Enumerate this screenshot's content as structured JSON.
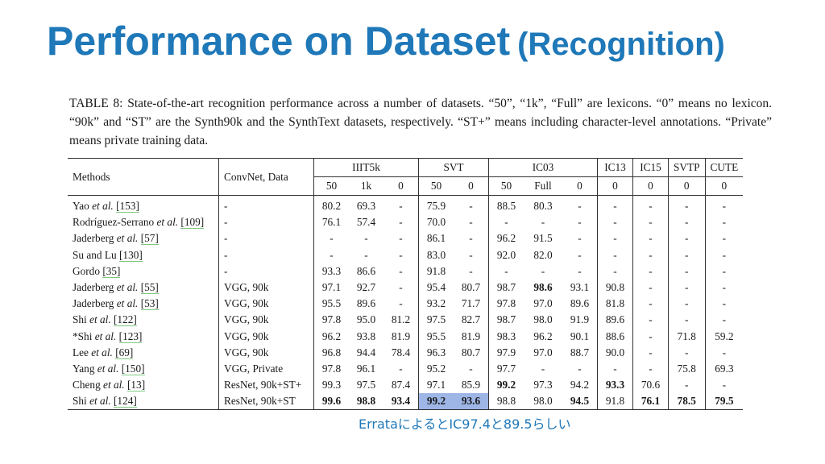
{
  "title": {
    "main": "Performance on Dataset",
    "sub": "(Recognition)"
  },
  "caption": "TABLE 8: State-of-the-art recognition performance across a number of datasets. “50”, “1k”, “Full” are lexicons. “0” means no lexicon. “90k” and “ST” are the Synth90k and the SynthText datasets, respectively. “ST+” means including character-level annotations. “Private” means private training data.",
  "table": {
    "col_methods": "Methods",
    "col_convnet": "ConvNet, Data",
    "groups": [
      {
        "name": "IIIT5k",
        "subs": [
          "50",
          "1k",
          "0"
        ]
      },
      {
        "name": "SVT",
        "subs": [
          "50",
          "0"
        ]
      },
      {
        "name": "IC03",
        "subs": [
          "50",
          "Full",
          "0"
        ]
      },
      {
        "name": "IC13",
        "subs": [
          "0"
        ]
      },
      {
        "name": "IC15",
        "subs": [
          "0"
        ]
      },
      {
        "name": "SVTP",
        "subs": [
          "0"
        ]
      },
      {
        "name": "CUTE",
        "subs": [
          "0"
        ]
      }
    ],
    "rows": [
      {
        "method": "Yao",
        "etal": " et al.",
        "ref": "[153]",
        "convnet": "-",
        "cells": [
          "80.2",
          "69.3",
          "-",
          "75.9",
          "-",
          "88.5",
          "80.3",
          "-",
          "-",
          "-",
          "-",
          "-"
        ]
      },
      {
        "method": "Rodríguez-Serrano",
        "etal": " et al.",
        "ref": "[109]",
        "convnet": "-",
        "cells": [
          "76.1",
          "57.4",
          "-",
          "70.0",
          "-",
          "-",
          "-",
          "-",
          "-",
          "-",
          "-",
          "-"
        ]
      },
      {
        "method": "Jaderberg",
        "etal": " et al.",
        "ref": "[57]",
        "convnet": "-",
        "cells": [
          "-",
          "-",
          "-",
          "86.1",
          "-",
          "96.2",
          "91.5",
          "-",
          "-",
          "-",
          "-",
          "-"
        ]
      },
      {
        "method": "Su and Lu",
        "etal": "",
        "ref": "[130]",
        "convnet": "-",
        "cells": [
          "-",
          "-",
          "-",
          "83.0",
          "-",
          "92.0",
          "82.0",
          "-",
          "-",
          "-",
          "-",
          "-"
        ]
      },
      {
        "method": "Gordo",
        "etal": "",
        "ref": "[35]",
        "convnet": "-",
        "cells": [
          "93.3",
          "86.6",
          "-",
          "91.8",
          "-",
          "-",
          "-",
          "-",
          "-",
          "-",
          "-",
          "-"
        ]
      },
      {
        "method": "Jaderberg",
        "etal": " et al.",
        "ref": "[55]",
        "convnet": "VGG, 90k",
        "cells": [
          "97.1",
          "92.7",
          "-",
          "95.4",
          "80.7",
          "98.7",
          "98.6",
          "93.1",
          "90.8",
          "-",
          "-",
          "-"
        ]
      },
      {
        "method": "Jaderberg",
        "etal": " et al.",
        "ref": "[53]",
        "convnet": "VGG, 90k",
        "cells": [
          "95.5",
          "89.6",
          "-",
          "93.2",
          "71.7",
          "97.8",
          "97.0",
          "89.6",
          "81.8",
          "-",
          "-",
          "-"
        ]
      },
      {
        "method": "Shi",
        "etal": " et al.",
        "ref": "[122]",
        "convnet": "VGG, 90k",
        "cells": [
          "97.8",
          "95.0",
          "81.2",
          "97.5",
          "82.7",
          "98.7",
          "98.0",
          "91.9",
          "89.6",
          "-",
          "-",
          "-"
        ]
      },
      {
        "method": "*Shi",
        "etal": " et al.",
        "ref": "[123]",
        "convnet": "VGG, 90k",
        "cells": [
          "96.2",
          "93.8",
          "81.9",
          "95.5",
          "81.9",
          "98.3",
          "96.2",
          "90.1",
          "88.6",
          "-",
          "71.8",
          "59.2"
        ]
      },
      {
        "method": "Lee",
        "etal": " et al.",
        "ref": "[69]",
        "convnet": "VGG, 90k",
        "cells": [
          "96.8",
          "94.4",
          "78.4",
          "96.3",
          "80.7",
          "97.9",
          "97.0",
          "88.7",
          "90.0",
          "-",
          "-",
          "-"
        ]
      },
      {
        "method": "Yang",
        "etal": " et al.",
        "ref": "[150]",
        "convnet": "VGG, Private",
        "cells": [
          "97.8",
          "96.1",
          "-",
          "95.2",
          "-",
          "97.7",
          "-",
          "-",
          "-",
          "-",
          "75.8",
          "69.3"
        ]
      },
      {
        "method": "Cheng",
        "etal": " et al.",
        "ref": "[13]",
        "convnet": "ResNet, 90k+ST+",
        "cells": [
          "99.3",
          "97.5",
          "87.4",
          "97.1",
          "85.9",
          "99.2",
          "97.3",
          "94.2",
          "93.3",
          "70.6",
          "-",
          "-"
        ]
      },
      {
        "method": "Shi",
        "etal": " et al.",
        "ref": "[124]",
        "convnet": "ResNet, 90k+ST",
        "cells": [
          "99.6",
          "98.8",
          "93.4",
          "99.2",
          "93.6",
          "98.8",
          "98.0",
          "94.5",
          "91.8",
          "76.1",
          "78.5",
          "79.5"
        ]
      }
    ],
    "bold": [
      [
        5,
        6
      ],
      [
        11,
        5
      ],
      [
        11,
        8
      ],
      [
        12,
        0
      ],
      [
        12,
        1
      ],
      [
        12,
        2
      ],
      [
        12,
        3
      ],
      [
        12,
        4
      ],
      [
        12,
        7
      ],
      [
        12,
        9
      ],
      [
        12,
        10
      ],
      [
        12,
        11
      ]
    ],
    "highlight": [
      [
        12,
        3
      ],
      [
        12,
        4
      ]
    ],
    "highlight_color": "#9db6e6"
  },
  "errata": "ErrataによるとIC97.4と89.5らしい",
  "colors": {
    "title": "#1f78b8",
    "errata": "#1f78b8",
    "ref_underline": "#7ec87e"
  }
}
